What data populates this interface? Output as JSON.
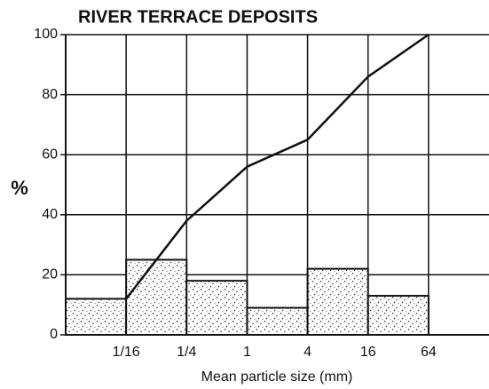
{
  "chart_data": {
    "type": "histogram",
    "title": "RIVER TERRACE DEPOSITS",
    "xlabel": "Mean particle size (mm)",
    "ylabel": "%",
    "xscale": "log",
    "bins": [
      0.015625,
      0.0625,
      0.25,
      1,
      4,
      16,
      64
    ],
    "counts": [
      12,
      25,
      18,
      9,
      22,
      13
    ],
    "line": {
      "x": [
        0.0625,
        0.25,
        1,
        4,
        16,
        64
      ],
      "values": [
        12,
        38,
        56,
        65,
        86,
        100
      ],
      "color": "#111111"
    },
    "color": "#ffffff",
    "xlim": [
      0.015625,
      256
    ],
    "ylim": [
      0,
      100
    ],
    "xticks": [
      {
        "value": 0.0625,
        "label": "1/16"
      },
      {
        "value": 0.25,
        "label": "1/4"
      },
      1,
      4,
      16,
      64
    ],
    "yticks": [
      0,
      20,
      40,
      60,
      80,
      100
    ],
    "grid": true
  }
}
